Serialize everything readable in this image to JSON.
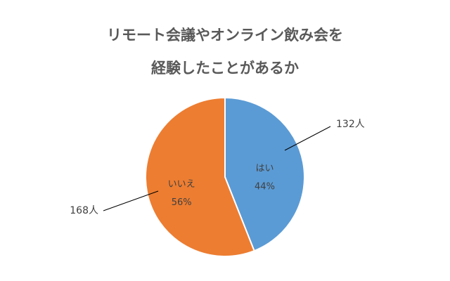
{
  "chart_data": {
    "type": "pie",
    "title_lines": [
      "リモート会議やオンライン飲み会を",
      "経験したことがあるか"
    ],
    "slices": [
      {
        "label": "はい",
        "percent_label": "44%",
        "count_label": "132人",
        "value": 132,
        "color": "#5B9BD5"
      },
      {
        "label": "いいえ",
        "percent_label": "56%",
        "count_label": "168人",
        "value": 168,
        "color": "#ED7D31"
      }
    ],
    "start_position": "top",
    "direction": "clockwise"
  }
}
